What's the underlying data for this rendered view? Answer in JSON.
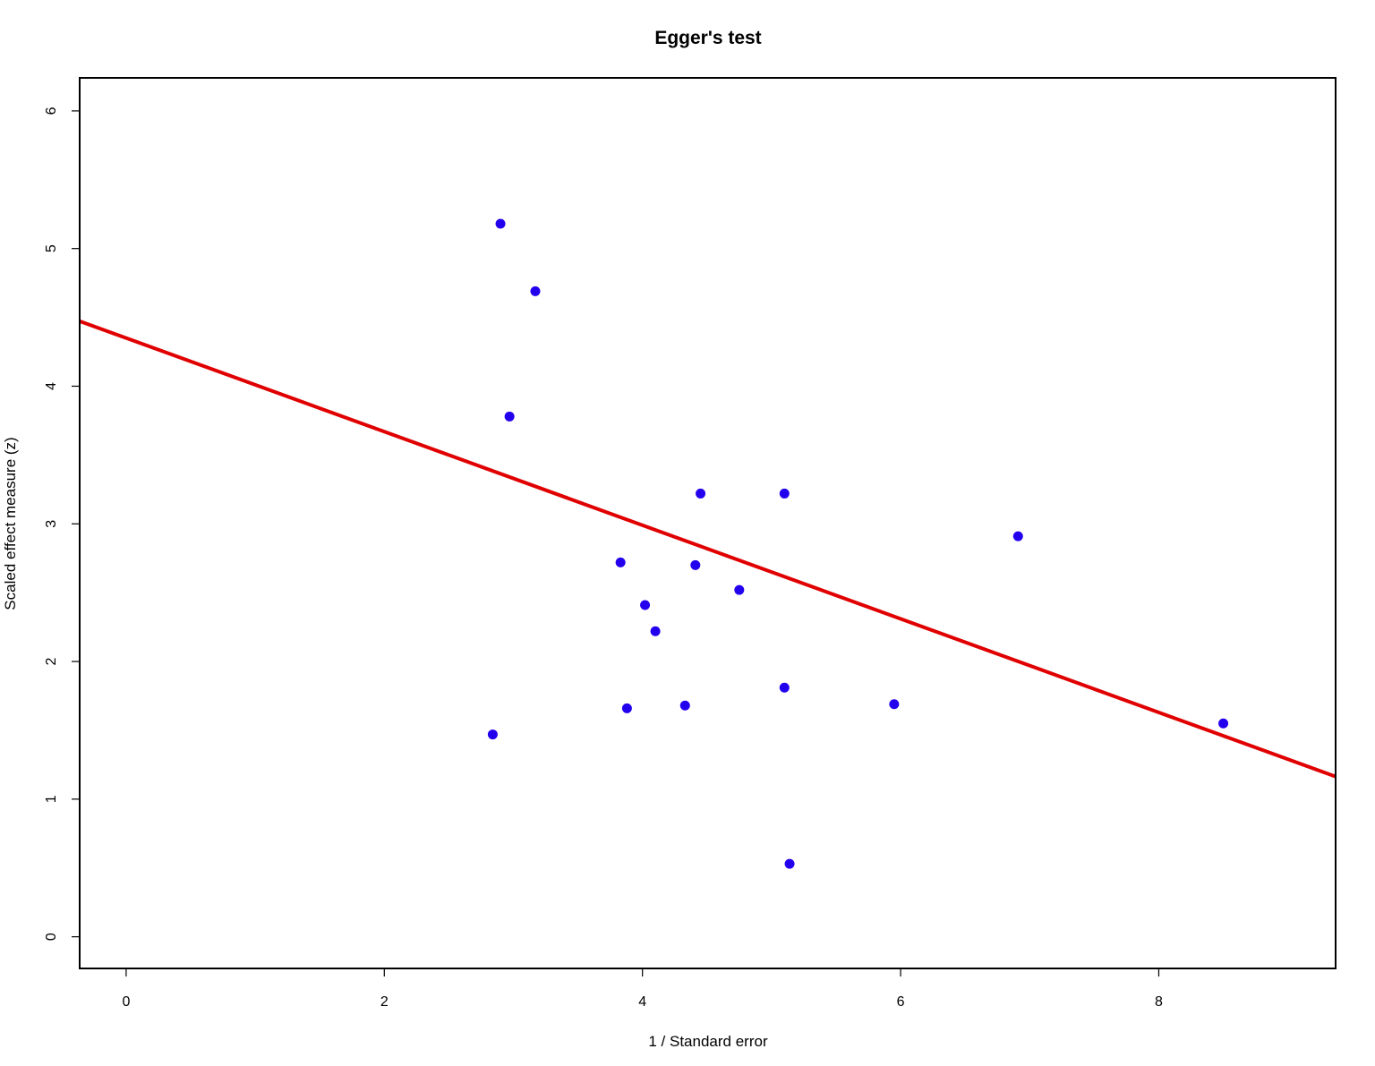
{
  "chart_data": {
    "type": "scatter",
    "title": "Egger's test",
    "xlabel": "1 / Standard error",
    "ylabel": "Scaled effect measure (z)",
    "xlim": [
      -0.36,
      9.37
    ],
    "ylim": [
      -0.23,
      6.24
    ],
    "xticks": [
      0,
      2,
      4,
      6,
      8
    ],
    "yticks": [
      0,
      1,
      2,
      3,
      4,
      5,
      6
    ],
    "grid": false,
    "points": [
      {
        "x": 2.9,
        "y": 5.18
      },
      {
        "x": 3.17,
        "y": 4.69
      },
      {
        "x": 2.97,
        "y": 3.78
      },
      {
        "x": 4.45,
        "y": 3.22
      },
      {
        "x": 5.1,
        "y": 3.22
      },
      {
        "x": 6.91,
        "y": 2.91
      },
      {
        "x": 3.83,
        "y": 2.72
      },
      {
        "x": 4.41,
        "y": 2.7
      },
      {
        "x": 4.75,
        "y": 2.52
      },
      {
        "x": 4.02,
        "y": 2.41
      },
      {
        "x": 4.1,
        "y": 2.22
      },
      {
        "x": 5.1,
        "y": 1.81
      },
      {
        "x": 5.95,
        "y": 1.69
      },
      {
        "x": 4.33,
        "y": 1.68
      },
      {
        "x": 3.88,
        "y": 1.66
      },
      {
        "x": 2.84,
        "y": 1.47
      },
      {
        "x": 8.5,
        "y": 1.55
      },
      {
        "x": 5.14,
        "y": 0.53
      }
    ],
    "regression_line": {
      "intercept": 4.35,
      "slope": -0.34
    },
    "point_color": "#2200ee",
    "line_color": "#e00000"
  }
}
